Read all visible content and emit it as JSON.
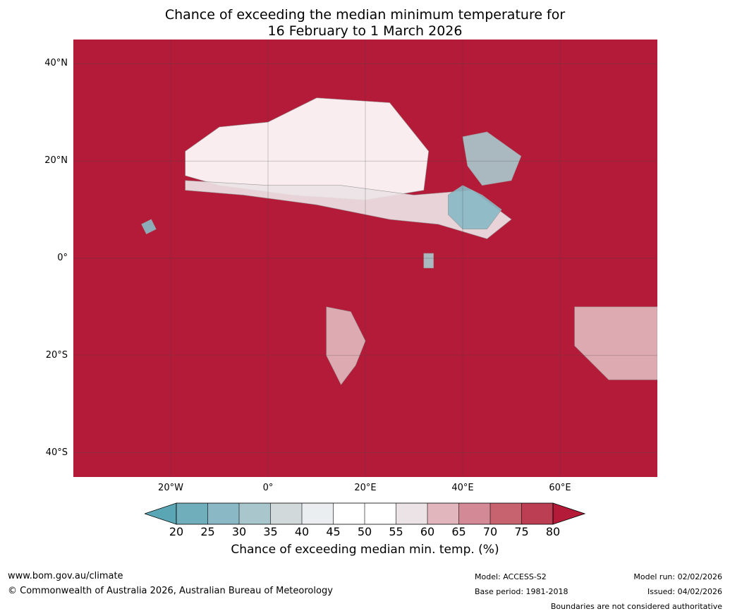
{
  "title": {
    "line1": "Chance of exceeding the median minimum temperature for",
    "line2": "16 February to 1 March 2026"
  },
  "map": {
    "projection": "equirectangular",
    "lon_range": [
      -40,
      80
    ],
    "lat_range": [
      -45,
      45
    ],
    "lat_ticks": [
      {
        "value": 40,
        "label": "40°N"
      },
      {
        "value": 20,
        "label": "20°N"
      },
      {
        "value": 0,
        "label": "0°"
      },
      {
        "value": -20,
        "label": "20°S"
      },
      {
        "value": -40,
        "label": "40°S"
      }
    ],
    "lon_ticks": [
      {
        "value": -20,
        "label": "20°W"
      },
      {
        "value": 0,
        "label": "0°"
      },
      {
        "value": 20,
        "label": "20°E"
      },
      {
        "value": 40,
        "label": "40°E"
      },
      {
        "value": 60,
        "label": "60°E"
      }
    ],
    "gridlines": true,
    "background_color": "#b31b38",
    "regions": [
      {
        "name": "Sahara white band",
        "level": 50,
        "points": [
          [
            -17,
            22
          ],
          [
            -10,
            27
          ],
          [
            0,
            28
          ],
          [
            10,
            33
          ],
          [
            25,
            32
          ],
          [
            33,
            22
          ],
          [
            32,
            14
          ],
          [
            20,
            12
          ],
          [
            5,
            13
          ],
          [
            -10,
            15
          ],
          [
            -17,
            17
          ]
        ]
      },
      {
        "name": "Sahel band",
        "level": 55,
        "points": [
          [
            -17,
            14
          ],
          [
            -5,
            13
          ],
          [
            10,
            11
          ],
          [
            25,
            8
          ],
          [
            35,
            7
          ],
          [
            45,
            4
          ],
          [
            50,
            8
          ],
          [
            42,
            14
          ],
          [
            30,
            13
          ],
          [
            15,
            15
          ],
          [
            0,
            15
          ],
          [
            -17,
            16
          ]
        ]
      },
      {
        "name": "Horn of Africa",
        "level": 25,
        "points": [
          [
            37,
            13
          ],
          [
            40,
            15
          ],
          [
            44,
            13
          ],
          [
            48,
            10
          ],
          [
            45,
            6
          ],
          [
            40,
            6
          ],
          [
            37,
            9
          ]
        ]
      },
      {
        "name": "Arabia",
        "level": 30,
        "points": [
          [
            40,
            25
          ],
          [
            45,
            26
          ],
          [
            52,
            21
          ],
          [
            50,
            16
          ],
          [
            44,
            15
          ],
          [
            41,
            19
          ]
        ]
      },
      {
        "name": "Lake Victoria",
        "level": 30,
        "points": [
          [
            32,
            1
          ],
          [
            34,
            1
          ],
          [
            34,
            -2
          ],
          [
            32,
            -2
          ]
        ]
      },
      {
        "name": "Angola and Namibia",
        "level": 60,
        "points": [
          [
            12,
            -10
          ],
          [
            17,
            -11
          ],
          [
            20,
            -17
          ],
          [
            18,
            -22
          ],
          [
            15,
            -26
          ],
          [
            12,
            -20
          ]
        ]
      },
      {
        "name": "Southwest Indian Ocean",
        "level": 60,
        "points": [
          [
            63,
            -10
          ],
          [
            80,
            -10
          ],
          [
            80,
            -25
          ],
          [
            70,
            -25
          ],
          [
            63,
            -18
          ]
        ]
      },
      {
        "name": "Tropical Atlantic",
        "level": 25,
        "points": [
          [
            -26,
            7
          ],
          [
            -24,
            8
          ],
          [
            -23,
            6
          ],
          [
            -25,
            5
          ]
        ]
      }
    ]
  },
  "colorbar": {
    "ticks": [
      "20",
      "25",
      "30",
      "35",
      "40",
      "45",
      "50",
      "55",
      "60",
      "65",
      "70",
      "75",
      "80"
    ],
    "colors": [
      "#5ba6b5",
      "#71aebb",
      "#8ab8c4",
      "#a9c6cc",
      "#d2d9da",
      "#eaeef0",
      "#ffffff",
      "#ffffff",
      "#ebe3e6",
      "#e1b6bd",
      "#d48a96",
      "#c7626f",
      "#bb3e52",
      "#b31b38"
    ],
    "label": "Chance of exceeding median min. temp. (%)"
  },
  "footer": {
    "website": "www.bom.gov.au/climate",
    "copyright": "© Commonwealth of Australia 2026, Australian Bureau of Meteorology",
    "model": "Model: ACCESS-S2",
    "base_period": "Base period: 1981-2018",
    "model_run": "Model run: 02/02/2026",
    "issued": "Issued: 04/02/2026",
    "disclaimer": "Boundaries are not considered authoritative"
  }
}
